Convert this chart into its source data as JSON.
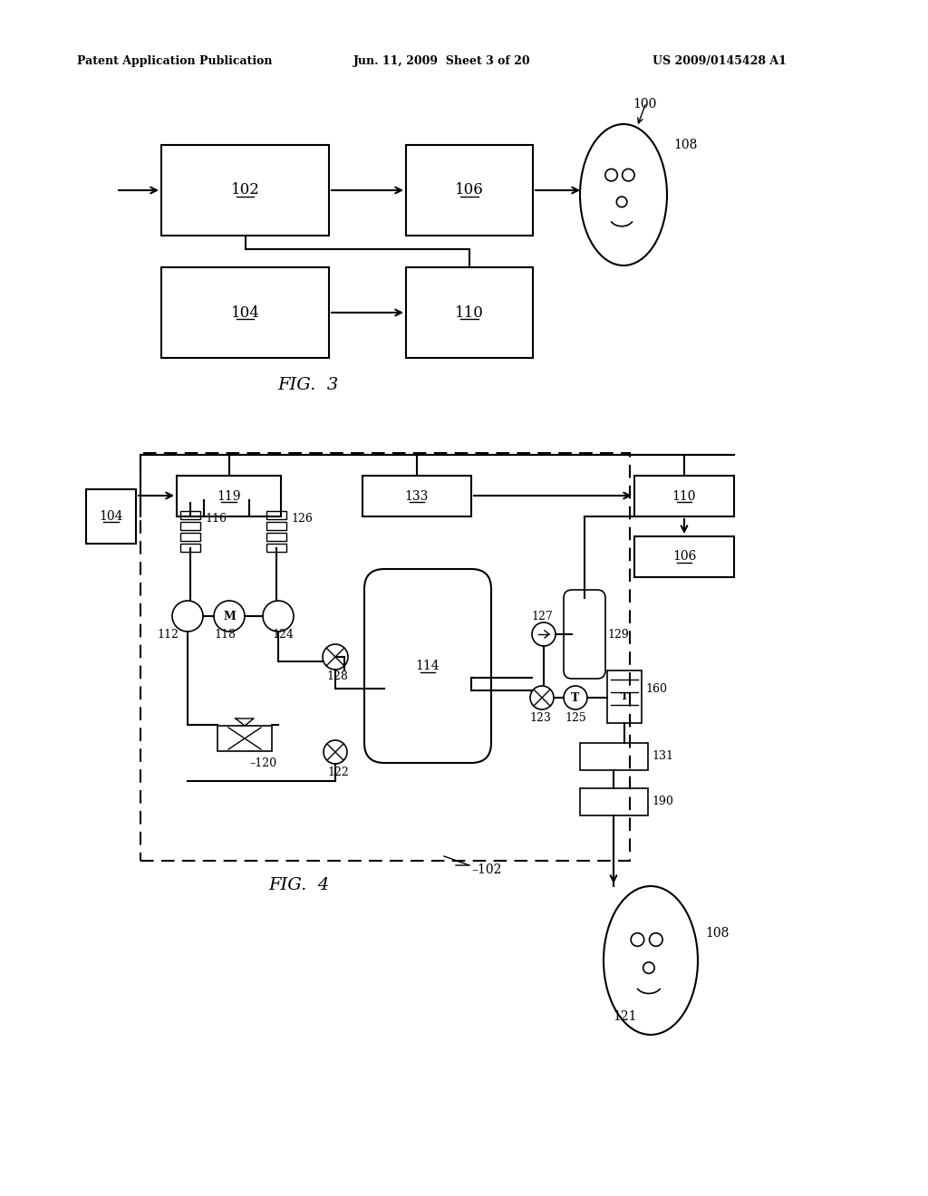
{
  "header_left": "Patent Application Publication",
  "header_mid": "Jun. 11, 2009  Sheet 3 of 20",
  "header_right": "US 2009/0145428 A1",
  "fig3_label": "FIG.  3",
  "fig4_label": "FIG.  4",
  "bg_color": "#ffffff"
}
